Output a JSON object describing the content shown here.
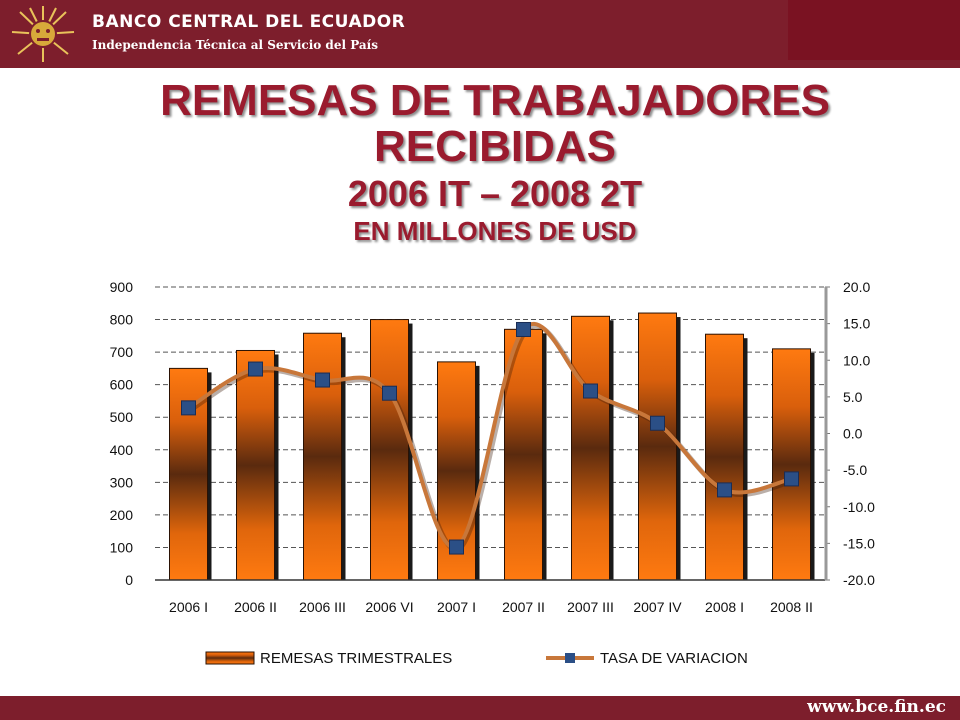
{
  "header": {
    "bank_name": "BANCO CENTRAL DEL ECUADOR",
    "slogan": "Independencia Técnica al Servicio del País"
  },
  "footer": {
    "url": "www.bce.fin.ec"
  },
  "colors": {
    "header_bg": "#7d1e2c",
    "title": "#9a1b2e",
    "bar_light": "#ff7a10",
    "bar_dark": "#5a2a0e",
    "line": "#c8773a",
    "marker": "#2b4f86"
  },
  "chart_data": {
    "type": "bar",
    "title": "REMESAS DE TRABAJADORES",
    "title_line2": "RECIBIDAS",
    "subtitle": "2006 IT – 2008 2T",
    "unit_label": "EN MILLONES DE USD",
    "categories": [
      "2006 I",
      "2006 II",
      "2006 III",
      "2006 VI",
      "2007 I",
      "2007 II",
      "2007 III",
      "2007 IV",
      "2008 I",
      "2008 II"
    ],
    "series": [
      {
        "name": "REMESAS TRIMESTRALES",
        "type": "bar",
        "axis": "left",
        "values": [
          650,
          705,
          758,
          800,
          670,
          770,
          810,
          820,
          755,
          710
        ]
      },
      {
        "name": "TASA DE VARIACION",
        "type": "line",
        "axis": "right",
        "values": [
          3.5,
          8.8,
          7.3,
          5.5,
          -15.5,
          14.2,
          5.8,
          1.4,
          -7.7,
          -6.2
        ]
      }
    ],
    "ylim_left": [
      0,
      900
    ],
    "yticks_left": [
      "0",
      "100",
      "200",
      "300",
      "400",
      "500",
      "600",
      "700",
      "800",
      "900"
    ],
    "ylim_right": [
      -20,
      20
    ],
    "yticks_right": [
      "-20.0",
      "-15.0",
      "-10.0",
      "-5.0",
      "0.0",
      "5.0",
      "10.0",
      "15.0",
      "20.0"
    ],
    "grid": true,
    "legend_position": "bottom"
  }
}
